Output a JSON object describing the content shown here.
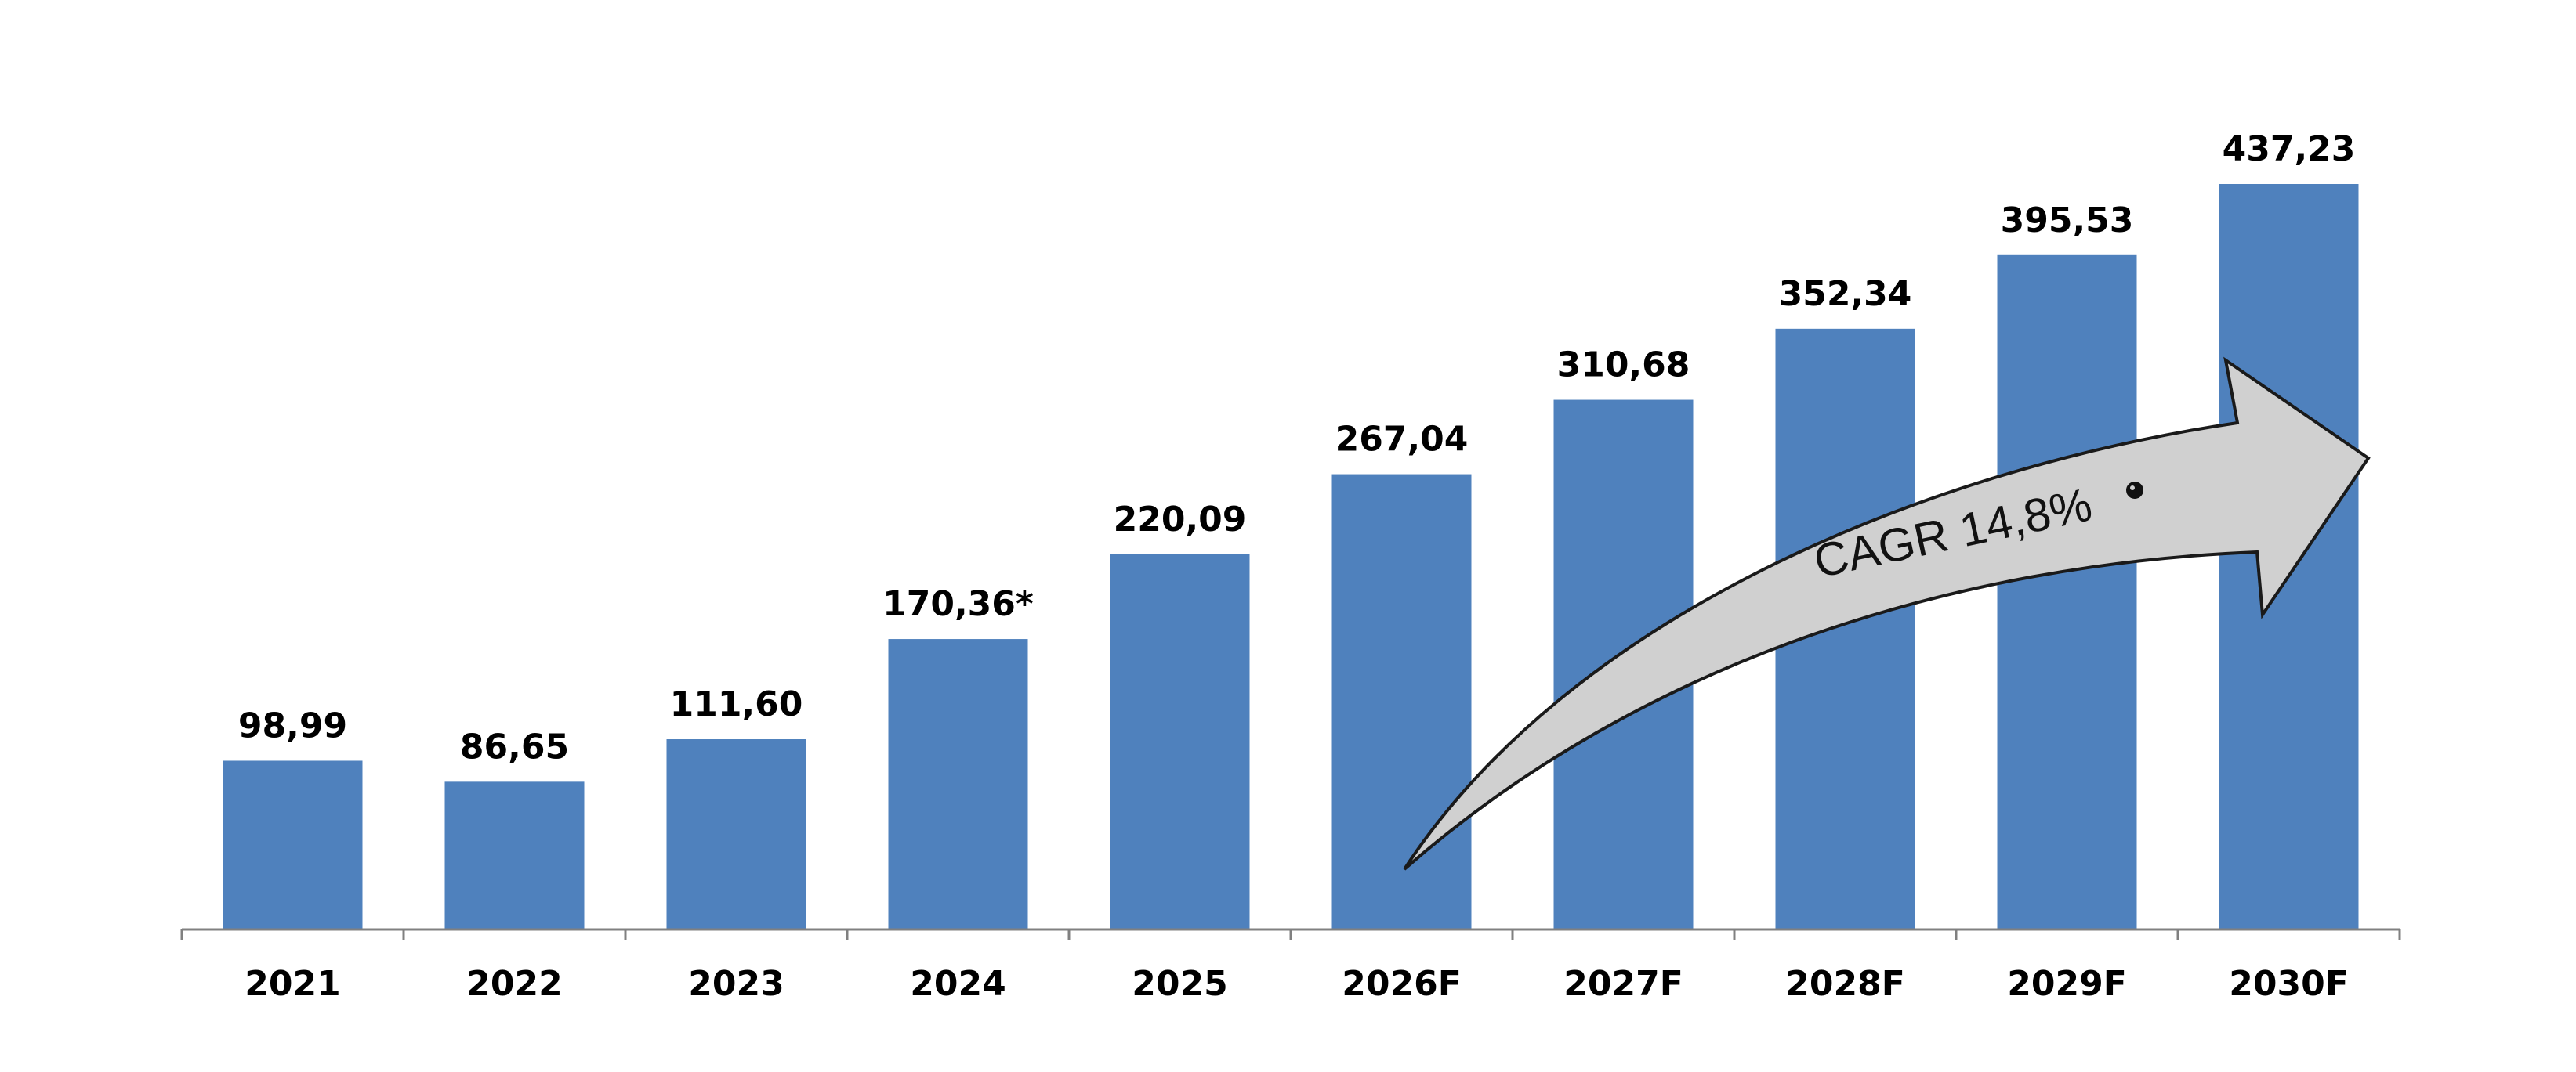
{
  "chart_data": {
    "type": "bar",
    "title": "",
    "xlabel": "",
    "ylabel": "",
    "ylim": [
      0,
      437.23
    ],
    "grid": false,
    "legend": "none",
    "categories": [
      "2021",
      "2022",
      "2023",
      "2024",
      "2025",
      "2026F",
      "2027F",
      "2028F",
      "2029F",
      "2030F"
    ],
    "values": [
      98.99,
      86.65,
      111.6,
      170.36,
      220.09,
      267.04,
      310.68,
      352.34,
      395.53,
      437.23
    ],
    "value_labels": [
      "98,99",
      "86,65",
      "111,60",
      "170,36*",
      "220,09",
      "267,04",
      "310,68",
      "352,34",
      "395,53",
      "437,23"
    ],
    "annotation": "CAGR 14,8%",
    "bar_color": "#4F81BD"
  }
}
